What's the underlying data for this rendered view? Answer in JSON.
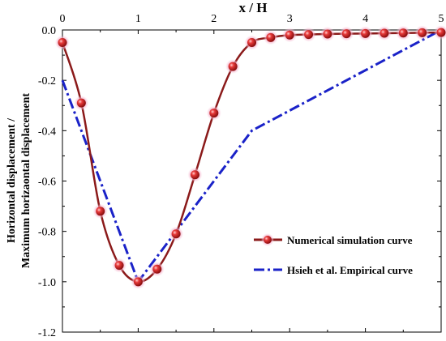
{
  "chart_data": {
    "type": "line",
    "xlabel": "x / H",
    "ylabel_lines": [
      "Horizontal displacement /",
      "Maximum horizaontal displacement"
    ],
    "xlim": [
      0,
      5
    ],
    "ylim": [
      -1.2,
      0.0
    ],
    "xticks": [
      "0",
      "1",
      "2",
      "3",
      "4",
      "5"
    ],
    "yticks": [
      "0.0",
      "-0.2",
      "-0.4",
      "-0.6",
      "-0.8",
      "-1.0",
      "-1.2"
    ],
    "grid": false,
    "legend_position": "lower-right",
    "series": [
      {
        "name": "Numerical simulation curve",
        "color": "#8b1a1a",
        "marker_color": "#d42020",
        "marker": "sphere",
        "x": [
          0,
          0.25,
          0.5,
          0.75,
          1.0,
          1.25,
          1.5,
          1.75,
          2.0,
          2.25,
          2.5,
          2.75,
          3.0,
          3.25,
          3.5,
          3.75,
          4.0,
          4.25,
          4.5,
          4.75,
          5.0
        ],
        "y": [
          -0.05,
          -0.29,
          -0.72,
          -0.935,
          -1.0,
          -0.95,
          -0.81,
          -0.575,
          -0.33,
          -0.145,
          -0.05,
          -0.03,
          -0.02,
          -0.018,
          -0.016,
          -0.015,
          -0.014,
          -0.013,
          -0.012,
          -0.011,
          -0.01
        ]
      },
      {
        "name": "Hsieh et al. Empirical curve",
        "color": "#1a22c8",
        "marker": "none",
        "x": [
          0,
          1.0,
          2.5,
          5.0
        ],
        "y": [
          -0.2,
          -1.0,
          -0.4,
          0.0
        ]
      }
    ]
  }
}
